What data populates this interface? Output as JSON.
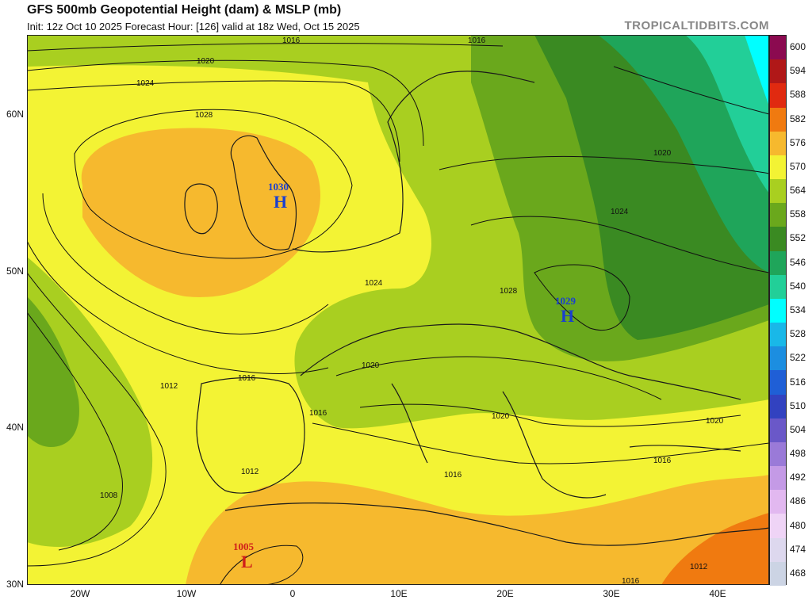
{
  "header": {
    "title": "GFS 500mb Geopotential Height (dam) & MSLP (mb)",
    "subtitle": "Init: 12z Oct 10 2025   Forecast Hour: [126]   valid at 18z Wed, Oct 15 2025",
    "brand": "TROPICALTIDBITS.COM"
  },
  "axes": {
    "lat_labels": [
      "60N",
      "50N",
      "40N",
      "30N"
    ],
    "lon_labels": [
      "20W",
      "10W",
      "0",
      "10E",
      "20E",
      "30E",
      "40E"
    ]
  },
  "colorbar": {
    "labels": [
      "600",
      "594",
      "588",
      "582",
      "576",
      "570",
      "564",
      "558",
      "552",
      "546",
      "540",
      "534",
      "528",
      "522",
      "516",
      "510",
      "504",
      "498",
      "492",
      "486",
      "480",
      "474",
      "468"
    ],
    "colors": [
      "#8b0a50",
      "#b01818",
      "#e02a10",
      "#f07a10",
      "#f6b92e",
      "#f3f334",
      "#a9cf20",
      "#6aa81c",
      "#3a8a22",
      "#1fa55a",
      "#22cf98",
      "#00ffff",
      "#19b8e8",
      "#1c8ee0",
      "#1f5fd6",
      "#3242c0",
      "#6a58c8",
      "#9a7ad8",
      "#c49ae6",
      "#e2b8f0",
      "#efd4f6",
      "#ddd8ee",
      "#ccd4e4"
    ]
  },
  "pressure_centers": [
    {
      "type": "H",
      "value": "1030"
    },
    {
      "type": "H",
      "value": "1029"
    },
    {
      "type": "L",
      "value": "1005"
    }
  ],
  "isobar_labels": [
    "1016",
    "1020",
    "1024",
    "1028",
    "1012",
    "1008",
    "1016",
    "1020",
    "1024",
    "1028",
    "1016",
    "1020",
    "1016",
    "1012",
    "1020",
    "1024",
    "1016",
    "1012",
    "1016",
    "1020",
    "1016"
  ]
}
